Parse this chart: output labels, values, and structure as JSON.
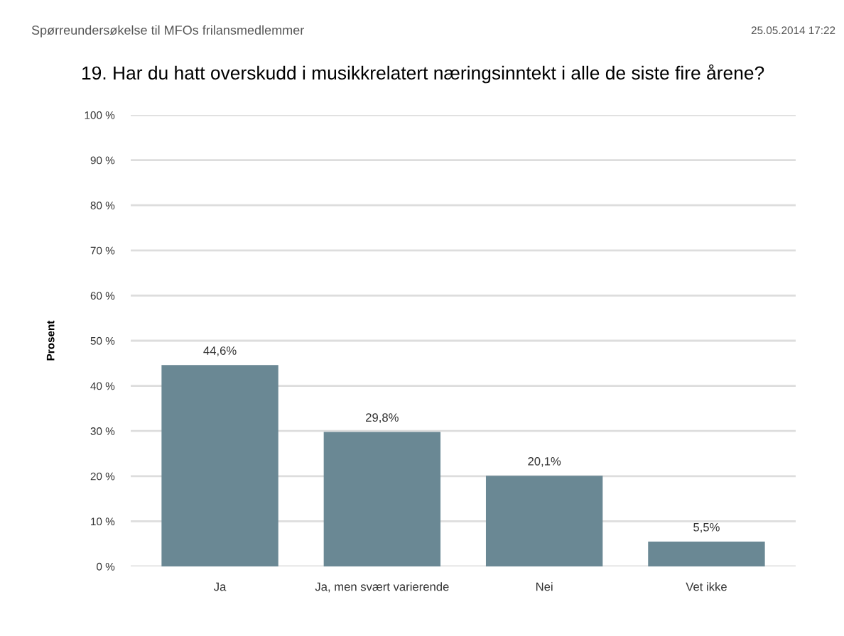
{
  "chart_data": {
    "type": "bar",
    "title": "19. Har du hatt overskudd i musikkrelatert næringsinntekt i alle de siste fire årene?",
    "annotations": [
      "Spørreundersøkelse til MFOs frilansmedlemmer",
      "25.05.2014 17:22"
    ],
    "ylabel": "Prosent",
    "categories": [
      "Ja",
      "Ja, men svært varierende",
      "Nei",
      "Vet ikke"
    ],
    "values": [
      44.6,
      29.8,
      20.1,
      5.5
    ],
    "value_labels": [
      "44,6%",
      "29,8%",
      "20,1%",
      "5,5%"
    ],
    "color": "#6a8894",
    "ylim": [
      0,
      100
    ],
    "yticks": [
      {
        "value": 0,
        "label": "0 %"
      },
      {
        "value": 10,
        "label": "10 %"
      },
      {
        "value": 20,
        "label": "20 %"
      },
      {
        "value": 30,
        "label": "30 %"
      },
      {
        "value": 40,
        "label": "40 %"
      },
      {
        "value": 50,
        "label": "50 %"
      },
      {
        "value": 60,
        "label": "60 %"
      },
      {
        "value": 70,
        "label": "70 %"
      },
      {
        "value": 80,
        "label": "80 %"
      },
      {
        "value": 90,
        "label": "90 %"
      },
      {
        "value": 100,
        "label": "100 %"
      }
    ],
    "grid": "y"
  }
}
